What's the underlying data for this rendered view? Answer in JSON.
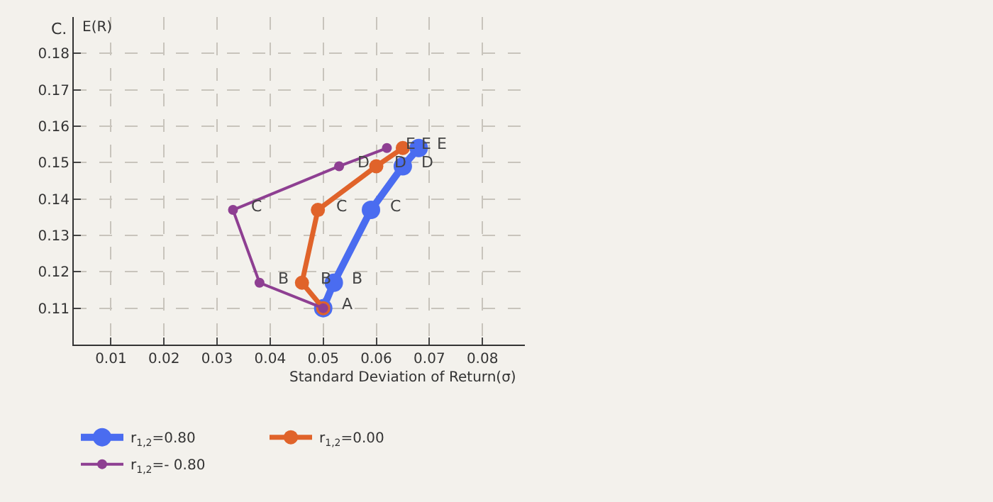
{
  "chart_data": {
    "type": "line",
    "xlabel": "Standard Deviation of Return(σ)",
    "ylabel": "E(R)",
    "xlim": [
      0.003,
      0.088
    ],
    "ylim": [
      0.1,
      0.19
    ],
    "xticks": [
      0.01,
      0.02,
      0.03,
      0.04,
      0.05,
      0.06,
      0.07,
      0.08
    ],
    "yticks": [
      0.11,
      0.12,
      0.13,
      0.14,
      0.15,
      0.16,
      0.17,
      0.18
    ],
    "grid": true,
    "legend": "bottom",
    "marker": "circle",
    "line_style": "solid",
    "series": [
      {
        "name": "r$_{1,2}$=0.80",
        "color": "#4a6cf0",
        "x": [
          0.05,
          0.052,
          0.059,
          0.065,
          0.068
        ],
        "values": [
          0.11,
          0.117,
          0.137,
          0.149,
          0.154
        ]
      },
      {
        "name": "r$_{1,2}$=0.00",
        "color": "#e0632a",
        "x": [
          0.05,
          0.046,
          0.049,
          0.06,
          0.065
        ],
        "values": [
          0.11,
          0.117,
          0.137,
          0.149,
          0.154
        ]
      },
      {
        "name": "r$_{1,2}$=- 0.80",
        "color": "#8e3f92",
        "x": [
          0.05,
          0.038,
          0.033,
          0.053,
          0.062
        ],
        "values": [
          0.11,
          0.117,
          0.137,
          0.149,
          0.154
        ]
      }
    ],
    "annotations": [
      "C.",
      {
        "text": "A",
        "x": 0.05,
        "y": 0.11
      },
      {
        "text": "B",
        "x": 0.052,
        "y": 0.117
      },
      {
        "text": "C",
        "x": 0.059,
        "y": 0.137
      },
      {
        "text": "D",
        "x": 0.065,
        "y": 0.149
      },
      {
        "text": "E",
        "x": 0.068,
        "y": 0.154
      },
      {
        "text": "B",
        "x": 0.046,
        "y": 0.117
      },
      {
        "text": "C",
        "x": 0.049,
        "y": 0.137
      },
      {
        "text": "D",
        "x": 0.06,
        "y": 0.149
      },
      {
        "text": "E",
        "x": 0.065,
        "y": 0.154
      },
      {
        "text": "B",
        "x": 0.038,
        "y": 0.117
      },
      {
        "text": "C",
        "x": 0.033,
        "y": 0.137
      },
      {
        "text": "D",
        "x": 0.053,
        "y": 0.149
      },
      {
        "text": "E",
        "x": 0.062,
        "y": 0.154
      }
    ]
  }
}
